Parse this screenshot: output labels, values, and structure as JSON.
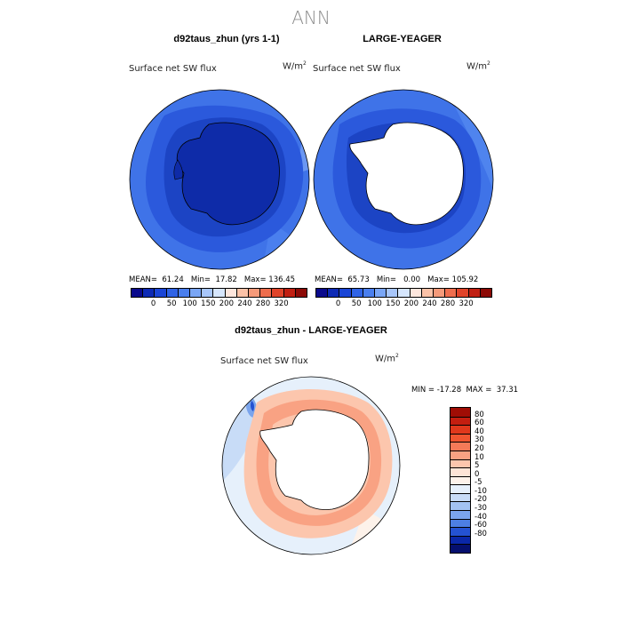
{
  "title": "ANN",
  "panels": [
    {
      "title": "d92taus_zhun (yrs 1-1)",
      "field": "Surface net SW flux",
      "units": "W/m",
      "units_exp": "2",
      "stats": "MEAN=  61.24   Min=  17.82   Max= 136.45"
    },
    {
      "title": "LARGE-YEAGER",
      "field": "Surface net SW flux",
      "units": "W/m",
      "units_exp": "2",
      "stats": "MEAN=  65.73   Min=   0.00   Max= 105.92"
    }
  ],
  "top_colorbar": {
    "colors": [
      "#0a0a8c",
      "#0d2ab5",
      "#1a45d6",
      "#2f63e6",
      "#4a7fee",
      "#7aa6f5",
      "#a8c6fa",
      "#d6e6fd",
      "#fde6dd",
      "#fbc2a8",
      "#f59a7a",
      "#ee6d4d",
      "#e0442a",
      "#c01f12",
      "#8c0a06"
    ],
    "labels": [
      "0",
      "50",
      "100",
      "150",
      "200",
      "240",
      "280",
      "320"
    ]
  },
  "diff": {
    "title": "d92taus_zhun - LARGE-YEAGER",
    "field": "Surface net SW flux",
    "units": "W/m",
    "units_exp": "2",
    "minmax": "MIN = -17.28  MAX =  37.31",
    "colors_top_to_bottom": [
      "#a00d05",
      "#c41e10",
      "#e0381c",
      "#f05530",
      "#f57a58",
      "#f9a283",
      "#fcc6ad",
      "#fde4d6",
      "#fdf2ea",
      "#e6f0fb",
      "#c8dcf7",
      "#a2c2f2",
      "#7aa4ec",
      "#4d7fe3",
      "#2452d2",
      "#0a27a8",
      "#050f6e"
    ],
    "labels": [
      "80",
      "60",
      "40",
      "30",
      "20",
      "10",
      "5",
      "0",
      "-5",
      "-10",
      "-20",
      "-30",
      "-40",
      "-60",
      "-80"
    ]
  }
}
